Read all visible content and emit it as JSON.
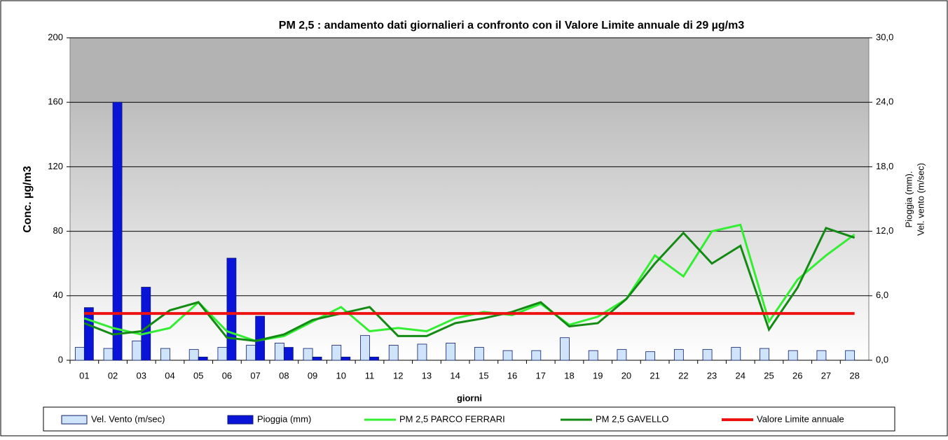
{
  "chart_data": {
    "type": "bar",
    "title": "PM 2,5 : andamento  dati giornalieri  a confronto con il Valore Limite annuale   di  29 µg/m3",
    "y_label": "Conc. µg/m3",
    "x_label": "giorni",
    "y2_label": [
      "Pioggia (mm).",
      "Vel. vento (m/sec)"
    ],
    "categories": [
      "01",
      "02",
      "03",
      "04",
      "05",
      "06",
      "07",
      "08",
      "09",
      "10",
      "11",
      "12",
      "13",
      "14",
      "15",
      "16",
      "17",
      "18",
      "19",
      "20",
      "21",
      "22",
      "23",
      "24",
      "25",
      "26",
      "27",
      "28"
    ],
    "ylim": [
      0,
      200
    ],
    "yticks": [
      0,
      40,
      80,
      120,
      160,
      200
    ],
    "y2lim": [
      0,
      30
    ],
    "y2ticks": [
      {
        "value": 0,
        "label": "0,0"
      },
      {
        "value": 6,
        "label": "6,0"
      },
      {
        "value": 12,
        "label": "12,0"
      },
      {
        "value": 18,
        "label": "18,0"
      },
      {
        "value": 24,
        "label": "24,0"
      },
      {
        "value": 30,
        "label": "30,0"
      }
    ],
    "grid": true,
    "legend": "bottom",
    "series": [
      {
        "name": "Vel. Vento (m/sec)",
        "type": "bar",
        "axis": "y2",
        "color": "#cfe4fb",
        "values": [
          1.2,
          1.1,
          1.8,
          1.1,
          1.0,
          1.2,
          1.4,
          1.6,
          1.1,
          1.4,
          2.3,
          1.4,
          1.5,
          1.6,
          1.2,
          0.9,
          0.9,
          2.1,
          0.9,
          1.0,
          0.8,
          1.0,
          1.0,
          1.2,
          1.1,
          0.9,
          0.9,
          0.9
        ]
      },
      {
        "name": "Pioggia (mm)",
        "type": "bar",
        "axis": "y2",
        "color": "#0a14d8",
        "values": [
          4.9,
          24.0,
          6.8,
          0,
          0.3,
          9.5,
          4.1,
          1.2,
          0.3,
          0.3,
          0.3,
          0,
          0,
          0,
          0,
          0,
          0,
          0,
          0,
          0,
          0,
          0,
          0,
          0,
          0,
          0,
          0,
          0
        ]
      },
      {
        "name": "PM 2,5 PARCO FERRARI",
        "type": "line",
        "color": "#33ee33",
        "values": [
          26,
          20,
          16,
          20,
          36,
          18,
          12,
          15,
          24,
          33,
          18,
          20,
          18,
          26,
          30,
          28,
          35,
          22,
          27,
          38,
          65,
          52,
          80,
          84,
          24,
          50,
          65,
          78
        ]
      },
      {
        "name": "PM 2,5 GAVELLO",
        "type": "line",
        "color": "#138a13",
        "values": [
          23,
          16,
          18,
          31,
          36,
          14,
          12,
          16,
          25,
          29,
          33,
          15,
          15,
          23,
          26,
          30,
          36,
          21,
          23,
          38,
          60,
          79,
          60,
          71,
          19,
          45,
          82,
          76
        ]
      },
      {
        "name": "Valore Limite annuale",
        "type": "line",
        "color": "#ee1111",
        "values": [
          29,
          29,
          29,
          29,
          29,
          29,
          29,
          29,
          29,
          29,
          29,
          29,
          29,
          29,
          29,
          29,
          29,
          29,
          29,
          29,
          29,
          29,
          29,
          29,
          29,
          29,
          29,
          29
        ]
      }
    ]
  }
}
